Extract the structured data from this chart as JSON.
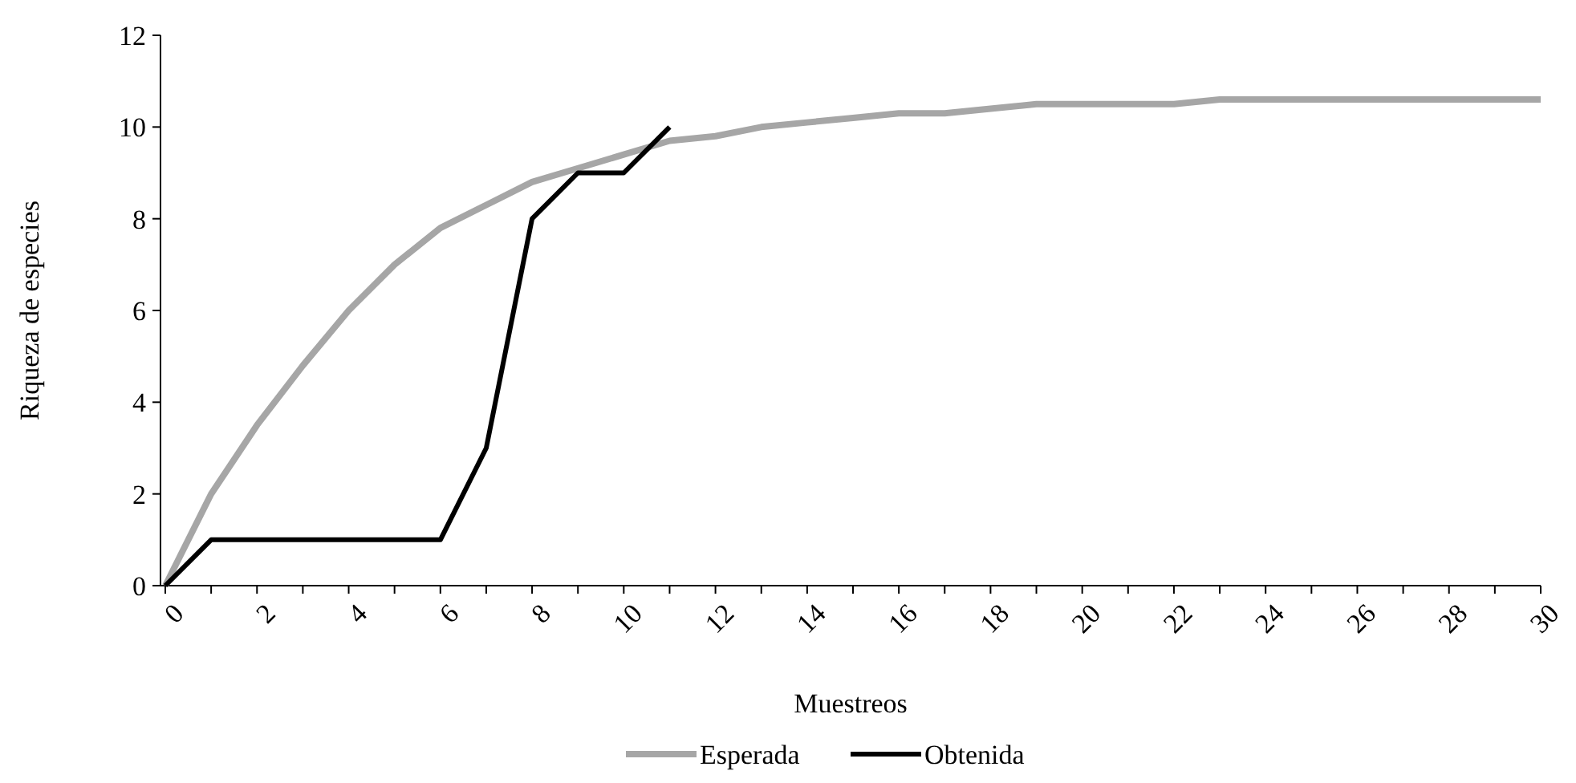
{
  "chart_data": {
    "type": "line",
    "xlabel": "Muestreos",
    "ylabel": "Riqueza de especies",
    "categories": [
      "0",
      null,
      "2",
      null,
      "4",
      null,
      "6",
      null,
      "8",
      null,
      "10",
      null,
      "12",
      null,
      "14",
      null,
      "16",
      null,
      "18",
      null,
      "20",
      null,
      "22",
      null,
      "24",
      null,
      "26",
      null,
      "28",
      null,
      "30"
    ],
    "series": [
      {
        "name": "Esperada",
        "color": "#a6a6a6",
        "values": [
          0,
          2.0,
          3.5,
          4.8,
          6.0,
          7.0,
          7.8,
          8.3,
          8.8,
          9.1,
          9.4,
          9.7,
          9.8,
          10.0,
          10.1,
          10.2,
          10.3,
          10.3,
          10.4,
          10.5,
          10.5,
          10.5,
          10.5,
          10.6,
          10.6,
          10.6,
          10.6,
          10.6,
          10.6,
          10.6,
          10.6
        ]
      },
      {
        "name": "Obtenida",
        "color": "#000000",
        "values": [
          0,
          1,
          1,
          1,
          1,
          1,
          1,
          3,
          8,
          9,
          9,
          10,
          null,
          null,
          null,
          null,
          null,
          null,
          null,
          null,
          null,
          null,
          null,
          null,
          null,
          null,
          null,
          null,
          null,
          null,
          null
        ]
      }
    ],
    "ylim": [
      0,
      12
    ],
    "yticks": [
      0,
      2,
      4,
      6,
      8,
      10,
      12
    ],
    "grid": false,
    "legend": "bottom",
    "marker": "none",
    "line_style": "solid"
  }
}
